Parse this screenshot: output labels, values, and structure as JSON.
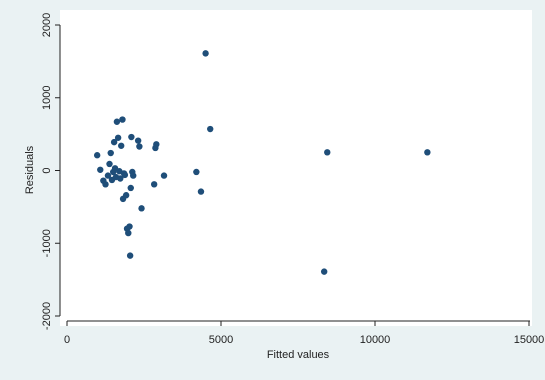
{
  "chart_data": {
    "type": "scatter",
    "title": "",
    "xlabel": "Fitted values",
    "ylabel": "Residuals",
    "xlim": [
      0,
      15000
    ],
    "ylim": [
      -2000,
      2000
    ],
    "x_ticks": [
      0,
      5000,
      10000,
      15000
    ],
    "x_tick_labels": [
      "0",
      "5000",
      "10000",
      "15000"
    ],
    "y_ticks": [
      -2000,
      -1000,
      0,
      1000,
      2000
    ],
    "y_tick_labels": [
      "-2000",
      "-1000",
      "0",
      "1000",
      "2000"
    ],
    "grid": false,
    "legend": "none",
    "marker_color": "#1f4e79",
    "points": [
      {
        "x": 980,
        "y": 210
      },
      {
        "x": 1080,
        "y": 10
      },
      {
        "x": 1180,
        "y": -140
      },
      {
        "x": 1250,
        "y": -190
      },
      {
        "x": 1330,
        "y": -70
      },
      {
        "x": 1380,
        "y": 90
      },
      {
        "x": 1420,
        "y": 240
      },
      {
        "x": 1460,
        "y": -130
      },
      {
        "x": 1500,
        "y": -20
      },
      {
        "x": 1530,
        "y": 390
      },
      {
        "x": 1560,
        "y": 30
      },
      {
        "x": 1590,
        "y": -90
      },
      {
        "x": 1620,
        "y": 670
      },
      {
        "x": 1660,
        "y": 450
      },
      {
        "x": 1700,
        "y": -10
      },
      {
        "x": 1730,
        "y": -110
      },
      {
        "x": 1760,
        "y": 340
      },
      {
        "x": 1800,
        "y": 700
      },
      {
        "x": 1820,
        "y": -390
      },
      {
        "x": 1850,
        "y": -40
      },
      {
        "x": 1880,
        "y": -60
      },
      {
        "x": 1920,
        "y": -340
      },
      {
        "x": 1950,
        "y": -800
      },
      {
        "x": 1990,
        "y": -860
      },
      {
        "x": 2030,
        "y": -770
      },
      {
        "x": 2050,
        "y": -1170
      },
      {
        "x": 2070,
        "y": -240
      },
      {
        "x": 2090,
        "y": 460
      },
      {
        "x": 2120,
        "y": -20
      },
      {
        "x": 2150,
        "y": -70
      },
      {
        "x": 2310,
        "y": 410
      },
      {
        "x": 2350,
        "y": 330
      },
      {
        "x": 2420,
        "y": -520
      },
      {
        "x": 2830,
        "y": -190
      },
      {
        "x": 2870,
        "y": 310
      },
      {
        "x": 2900,
        "y": 360
      },
      {
        "x": 3150,
        "y": -70
      },
      {
        "x": 4200,
        "y": -20
      },
      {
        "x": 4350,
        "y": -290
      },
      {
        "x": 4500,
        "y": 1610
      },
      {
        "x": 4650,
        "y": 570
      },
      {
        "x": 8350,
        "y": -1390
      },
      {
        "x": 8450,
        "y": 250
      },
      {
        "x": 11700,
        "y": 250
      }
    ]
  }
}
